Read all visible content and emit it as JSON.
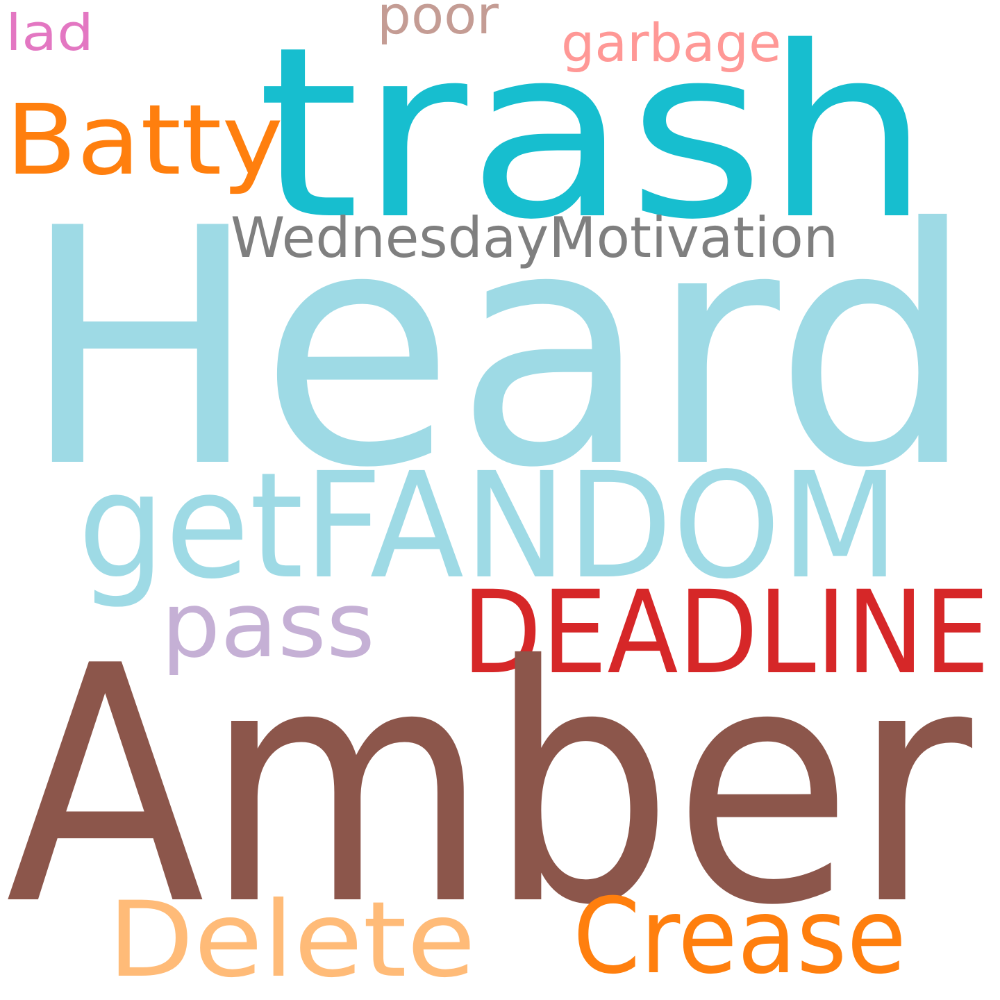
{
  "words": [
    {
      "text": "lad"
    },
    {
      "text": "poor"
    },
    {
      "text": "garbage"
    },
    {
      "text": "trash"
    },
    {
      "text": "Batty"
    },
    {
      "text": "WednesdayMotivation"
    },
    {
      "text": "Heard"
    },
    {
      "text": "getFANDOM"
    },
    {
      "text": "pass"
    },
    {
      "text": "DEADLINE"
    },
    {
      "text": "Amber"
    },
    {
      "text": "Delete"
    },
    {
      "text": "Crease"
    }
  ]
}
